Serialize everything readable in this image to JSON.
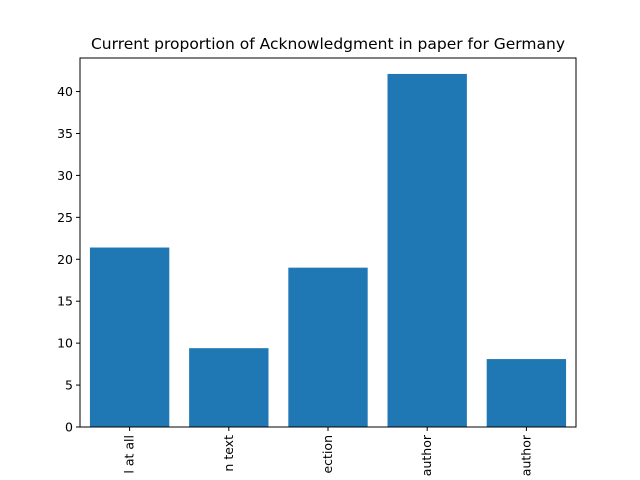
{
  "chart_data": {
    "type": "bar",
    "title": "Current proportion of Acknowledgment in paper for Germany",
    "xlabel": "",
    "ylabel": "",
    "categories": [
      "l at all",
      "n text",
      "ection",
      "author",
      "author"
    ],
    "values": [
      21.4,
      9.4,
      19.0,
      42.1,
      8.1
    ],
    "ylim": [
      0,
      44
    ],
    "yticks": [
      0,
      5,
      10,
      15,
      20,
      25,
      30,
      35,
      40
    ],
    "bar_color": "#1f77b4",
    "grid": false,
    "legend": "none"
  }
}
